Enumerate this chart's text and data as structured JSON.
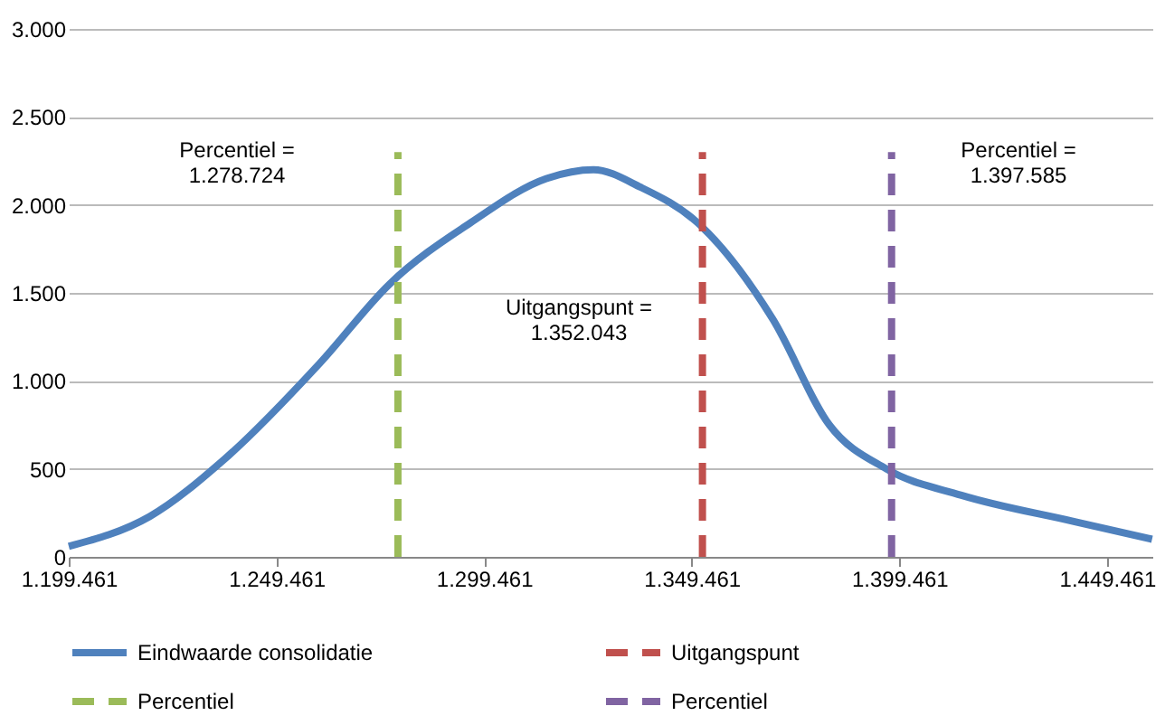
{
  "chart_data": {
    "type": "line",
    "xlim": [
      1199461,
      1460370
    ],
    "ylim": [
      0,
      3000
    ],
    "xticks": [
      {
        "value": 1199461,
        "label": "1.199.461"
      },
      {
        "value": 1249461,
        "label": "1.249.461"
      },
      {
        "value": 1299461,
        "label": "1.299.461"
      },
      {
        "value": 1349461,
        "label": "1.349.461"
      },
      {
        "value": 1399461,
        "label": "1.399.461"
      },
      {
        "value": 1449461,
        "label": "1.449.461"
      }
    ],
    "yticks": [
      0,
      500,
      {
        "value": 1000,
        "label": "1.000"
      },
      {
        "value": 1500,
        "label": "1.500"
      },
      {
        "value": 2000,
        "label": "2.000"
      },
      {
        "value": 2500,
        "label": "2.500"
      },
      {
        "value": 3000,
        "label": "3.000"
      }
    ],
    "grid": "y",
    "legend": "bottom",
    "series": [
      {
        "name": "Eindwaarde consolidatie",
        "color": "#4f81bd",
        "line_style": "solid",
        "x": [
          1199461,
          1219000,
          1237200,
          1259900,
          1276700,
          1296300,
          1314500,
          1325800,
          1337200,
          1350800,
          1369000,
          1382600,
          1396300,
          1414400,
          1441700,
          1460300
        ],
        "values": [
          60,
          230,
          560,
          1100,
          1550,
          1900,
          2150,
          2200,
          2100,
          1900,
          1350,
          750,
          500,
          350,
          200,
          100
        ]
      },
      {
        "name": "Uitgangspunt",
        "color": "#c0504d",
        "line_style": "dashed",
        "x": [
          1352043,
          1352043
        ],
        "values": [
          0,
          2300
        ]
      },
      {
        "name": "Percentiel",
        "color": "#9bbb59",
        "line_style": "dashed",
        "x": [
          1278724,
          1278724
        ],
        "values": [
          0,
          2300
        ]
      },
      {
        "name": "Percentiel",
        "color": "#8064a2",
        "line_style": "dashed",
        "x": [
          1397585,
          1397585
        ],
        "values": [
          0,
          2300
        ]
      }
    ],
    "annotations": [
      "Percentiel =\n1.278.724",
      "Uitgangspunt =\n1.352.043",
      "Percentiel =\n1.397.585"
    ]
  }
}
